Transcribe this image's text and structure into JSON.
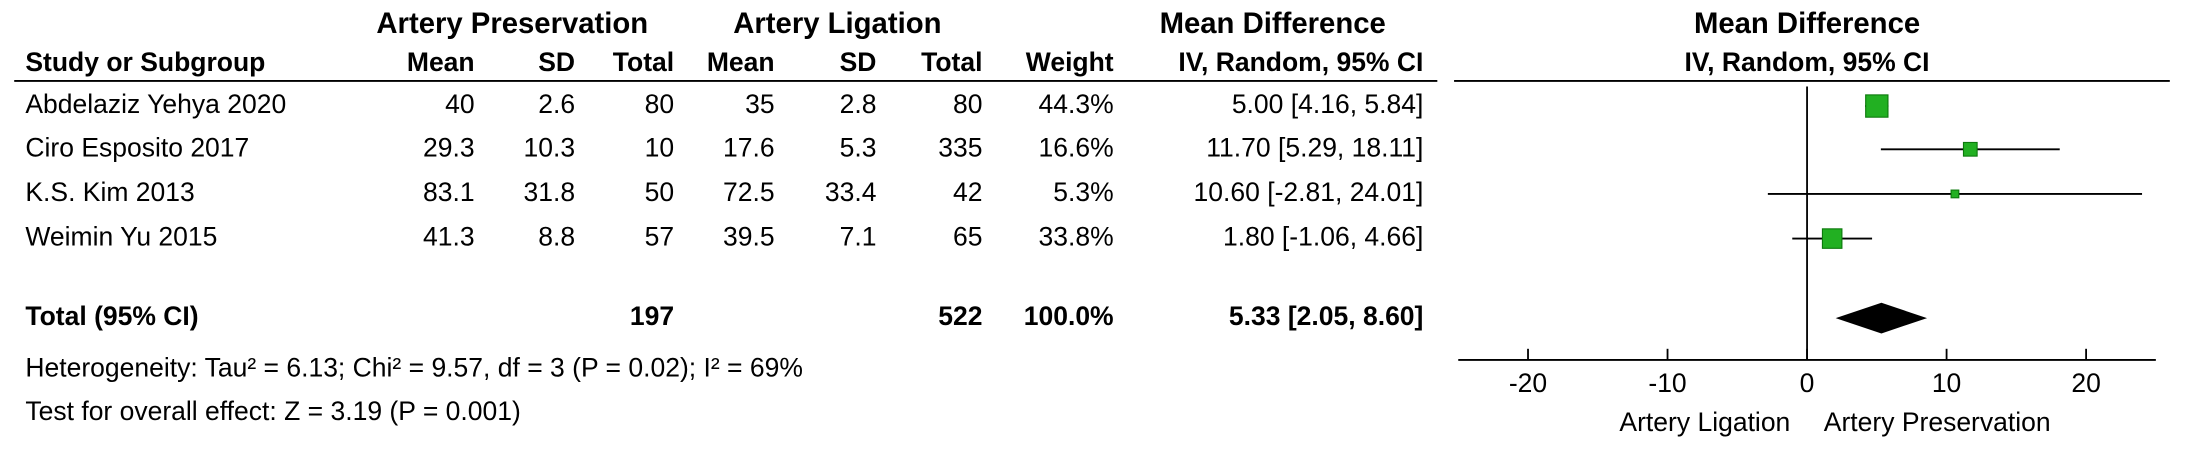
{
  "chart_data": {
    "type": "forest",
    "column_groups": {
      "experimental": "Artery Preservation",
      "control": "Artery Ligation",
      "effect": "Mean Difference"
    },
    "columns": [
      "Study or Subgroup",
      "Mean",
      "SD",
      "Total",
      "Mean",
      "SD",
      "Total",
      "Weight",
      "IV, Random, 95% CI"
    ],
    "plot_header": [
      "Mean Difference",
      "IV, Random, 95% CI"
    ],
    "studies": [
      {
        "name": "Abdelaziz Yehya 2020",
        "exp_mean": 40,
        "exp_sd": 2.6,
        "exp_total": 80,
        "ctl_mean": 35,
        "ctl_sd": 2.8,
        "ctl_total": 80,
        "weight": 44.3,
        "weight_label": "44.3%",
        "md": 5.0,
        "ci_low": 4.16,
        "ci_high": 5.84,
        "ci_label": "5.00 [4.16, 5.84]"
      },
      {
        "name": "Ciro Esposito 2017",
        "exp_mean": 29.3,
        "exp_sd": 10.3,
        "exp_total": 10,
        "ctl_mean": 17.6,
        "ctl_sd": 5.3,
        "ctl_total": 335,
        "weight": 16.6,
        "weight_label": "16.6%",
        "md": 11.7,
        "ci_low": 5.29,
        "ci_high": 18.11,
        "ci_label": "11.70 [5.29, 18.11]"
      },
      {
        "name": "K.S. Kim 2013",
        "exp_mean": 83.1,
        "exp_sd": 31.8,
        "exp_total": 50,
        "ctl_mean": 72.5,
        "ctl_sd": 33.4,
        "ctl_total": 42,
        "weight": 5.3,
        "weight_label": "5.3%",
        "md": 10.6,
        "ci_low": -2.81,
        "ci_high": 24.01,
        "ci_label": "10.60 [-2.81, 24.01]"
      },
      {
        "name": "Weimin Yu 2015",
        "exp_mean": 41.3,
        "exp_sd": 8.8,
        "exp_total": 57,
        "ctl_mean": 39.5,
        "ctl_sd": 7.1,
        "ctl_total": 65,
        "weight": 33.8,
        "weight_label": "33.8%",
        "md": 1.8,
        "ci_low": -1.06,
        "ci_high": 4.66,
        "ci_label": "1.80 [-1.06, 4.66]"
      }
    ],
    "total": {
      "name": "Total (95% CI)",
      "exp_total": 197,
      "ctl_total": 522,
      "weight": 100,
      "weight_label": "100.0%",
      "md": 5.33,
      "ci_low": 2.05,
      "ci_high": 8.6,
      "ci_label": "5.33 [2.05, 8.60]"
    },
    "heterogeneity": "Heterogeneity: Tau² = 6.13; Chi² = 9.57, df = 3 (P = 0.02); I² = 69%",
    "overall_effect": "Test for overall effect: Z = 3.19 (P = 0.001)",
    "xlim": [
      -25,
      25
    ],
    "xticks": [
      -20,
      -10,
      0,
      10,
      20
    ],
    "x_labels": {
      "left": "Artery Ligation",
      "right": "Artery Preservation"
    },
    "marker_color": "#22b022",
    "diamond_color": "#000000"
  }
}
